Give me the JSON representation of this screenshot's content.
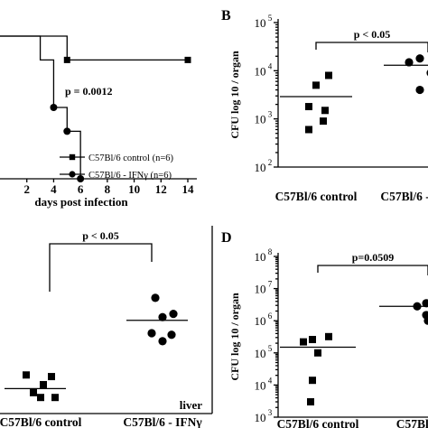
{
  "chart_data": [
    {
      "panel": "A",
      "type": "line",
      "title": "",
      "xlabel": "days post infection",
      "ylabel": "",
      "x_ticks": [
        "2",
        "4",
        "6",
        "8",
        "10",
        "12",
        "14"
      ],
      "xlim": [
        0,
        14
      ],
      "ylim": [
        0,
        100
      ],
      "p_value": "p = 0.0012",
      "legend_position": "bottom-right",
      "series": [
        {
          "name": "C57Bl/6 control (n=6)",
          "marker": "square",
          "points": [
            [
              0,
              100
            ],
            [
              5,
              100
            ],
            [
              5,
              83.3
            ],
            [
              14,
              83.3
            ]
          ],
          "markers": [
            [
              5,
              83.3
            ],
            [
              14,
              83.3
            ]
          ]
        },
        {
          "name": "C57Bl/6 - IFNγ (n=6)",
          "marker": "circle",
          "points": [
            [
              0,
              100
            ],
            [
              3,
              100
            ],
            [
              3,
              83.3
            ],
            [
              4,
              83.3
            ],
            [
              4,
              50
            ],
            [
              5,
              50
            ],
            [
              5,
              33.3
            ],
            [
              6,
              33.3
            ],
            [
              6,
              0
            ]
          ],
          "markers": [
            [
              4,
              50
            ],
            [
              5,
              33.3
            ],
            [
              6,
              0
            ]
          ]
        }
      ]
    },
    {
      "panel": "B",
      "type": "scatter",
      "ylabel": "CFU log 10 / organ",
      "y_scale": "log",
      "ylim": [
        100,
        100000
      ],
      "y_ticks": [
        {
          "exp": 2,
          "label": "10",
          "sup": "2"
        },
        {
          "exp": 3,
          "label": "10",
          "sup": "3"
        },
        {
          "exp": 4,
          "label": "10",
          "sup": "4"
        },
        {
          "exp": 5,
          "label": "10",
          "sup": "5"
        }
      ],
      "categories": [
        "C57Bl/6 control",
        "C57Bl/6 - IFNγ"
      ],
      "groups": [
        {
          "category": "C57Bl/6 control",
          "marker": "square",
          "values": [
            8000,
            5000,
            1800,
            1500,
            900,
            600
          ],
          "mean": 2900
        },
        {
          "category": "C57Bl/6 - IFNγ",
          "marker": "circle",
          "values": [
            18000,
            15000,
            9000,
            4000
          ],
          "mean": 13000
        }
      ],
      "p_value": "p < 0.05"
    },
    {
      "panel": "C",
      "type": "scatter",
      "categories": [
        "C57Bl/6 control",
        "C57Bl/6 - IFNγ"
      ],
      "organ_label": "liver",
      "ylim": [
        0,
        10
      ],
      "groups": [
        {
          "category": "C57Bl/6 control",
          "marker": "square",
          "values": [
            2.4,
            2.3,
            1.8,
            1.3,
            1.0,
            1.0
          ],
          "mean": 1.55
        },
        {
          "category": "C57Bl/6 - IFNγ",
          "marker": "circle",
          "values": [
            7.2,
            6.2,
            6.0,
            5.0,
            4.9,
            4.5
          ],
          "mean": 5.8
        }
      ],
      "p_value": "p < 0.05"
    },
    {
      "panel": "D",
      "type": "scatter",
      "ylabel": "CFU log 10 / organ",
      "y_scale": "log",
      "ylim": [
        1000,
        100000000
      ],
      "y_ticks": [
        {
          "exp": 3,
          "label": "10",
          "sup": "3"
        },
        {
          "exp": 4,
          "label": "10",
          "sup": "4"
        },
        {
          "exp": 5,
          "label": "10",
          "sup": "5"
        },
        {
          "exp": 6,
          "label": "10",
          "sup": "6"
        },
        {
          "exp": 7,
          "label": "10",
          "sup": "7"
        },
        {
          "exp": 8,
          "label": "10",
          "sup": "8"
        }
      ],
      "categories": [
        "C57Bl/6 control",
        "C57Bl/6"
      ],
      "groups": [
        {
          "category": "C57Bl/6 control",
          "marker": "square",
          "values": [
            320000,
            260000,
            220000,
            100000,
            14000,
            3000
          ],
          "mean": 150000
        },
        {
          "category": "C57Bl/6",
          "marker": "circle",
          "values": [
            3500000,
            2800000,
            1500000,
            1000000
          ],
          "mean": 2800000
        }
      ],
      "p_value": "p=0.0509"
    }
  ],
  "panel_letters": {
    "b": "B",
    "d": "D"
  }
}
